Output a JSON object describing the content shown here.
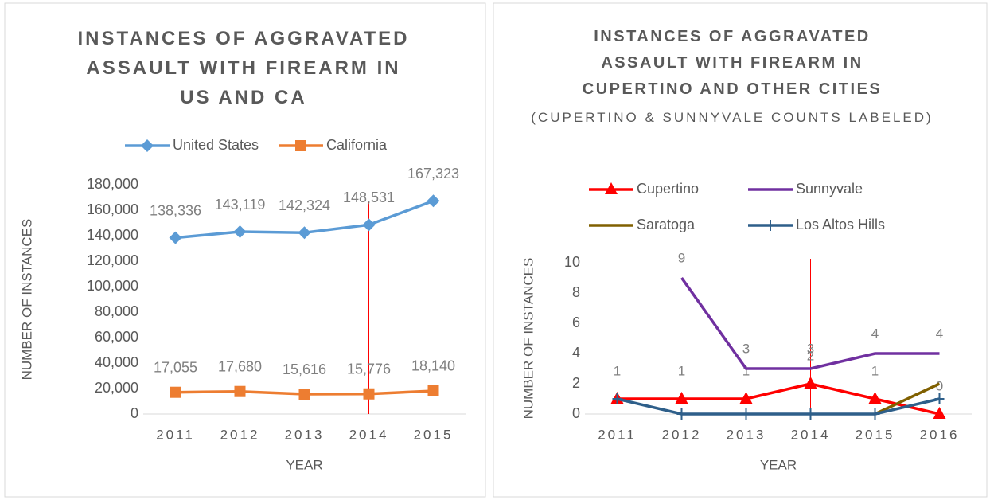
{
  "chart_data": [
    {
      "type": "line",
      "title": "INSTANCES OF AGGRAVATED ASSAULT WITH FIREARM IN US AND CA",
      "categories": [
        "2011",
        "2012",
        "2013",
        "2014",
        "2015"
      ],
      "series": [
        {
          "name": "United States",
          "color": "#5b9bd5",
          "marker": "diamond",
          "values": [
            138336,
            143119,
            142324,
            148531,
            167323
          ],
          "value_labels": [
            "138,336",
            "143,119",
            "142,324",
            "148,531",
            "167,323"
          ]
        },
        {
          "name": "California",
          "color": "#ed7d31",
          "marker": "square",
          "values": [
            17055,
            17680,
            15616,
            15776,
            18140
          ],
          "value_labels": [
            "17,055",
            "17,680",
            "15,616",
            "15,776",
            "18,140"
          ]
        }
      ],
      "ylim": [
        0,
        180000
      ],
      "yticks": [
        0,
        {
          "value": 20000,
          "label": "20,000"
        },
        {
          "value": 40000,
          "label": "40,000"
        },
        {
          "value": 60000,
          "label": "60,000"
        },
        {
          "value": 80000,
          "label": "80,000"
        },
        {
          "value": 100000,
          "label": "100,000"
        },
        {
          "value": 120000,
          "label": "120,000"
        },
        {
          "value": 140000,
          "label": "140,000"
        },
        {
          "value": 160000,
          "label": "160,000"
        },
        {
          "value": 180000,
          "label": "180,000"
        }
      ],
      "ylabel": "NUMBER OF INSTANCES",
      "xlabel": "YEAR",
      "legend": "top"
    },
    {
      "type": "line",
      "title": "INSTANCES OF AGGRAVATED ASSAULT WITH FIREARM IN CUPERTINO AND OTHER CITIES",
      "subtitle": "(CUPERTINO & SUNNYVALE COUNTS LABELED)",
      "categories": [
        "2011",
        "2012",
        "2013",
        "2014",
        "2015",
        "2016"
      ],
      "series": [
        {
          "name": "Cupertino",
          "color": "#ff0000",
          "marker": "triangle",
          "labeled": true,
          "values": [
            1,
            1,
            1,
            2,
            1,
            0
          ]
        },
        {
          "name": "Sunnyvale",
          "color": "#7030a0",
          "marker": "none",
          "labeled": true,
          "values": [
            null,
            9,
            3,
            3,
            4,
            4
          ]
        },
        {
          "name": "Saratoga",
          "color": "#806000",
          "marker": "none",
          "labeled": false,
          "values": [
            null,
            null,
            null,
            null,
            0,
            2
          ]
        },
        {
          "name": "Los Altos Hills",
          "color": "#2e5f8a",
          "marker": "plus",
          "labeled": false,
          "values": [
            1,
            0,
            0,
            0,
            0,
            1
          ]
        }
      ],
      "ylim": [
        0,
        10
      ],
      "yticks": [
        0,
        2,
        4,
        6,
        8,
        10
      ],
      "ylabel": "NUMBER OF INSTANCES",
      "xlabel": "YEAR",
      "legend": "top"
    }
  ]
}
